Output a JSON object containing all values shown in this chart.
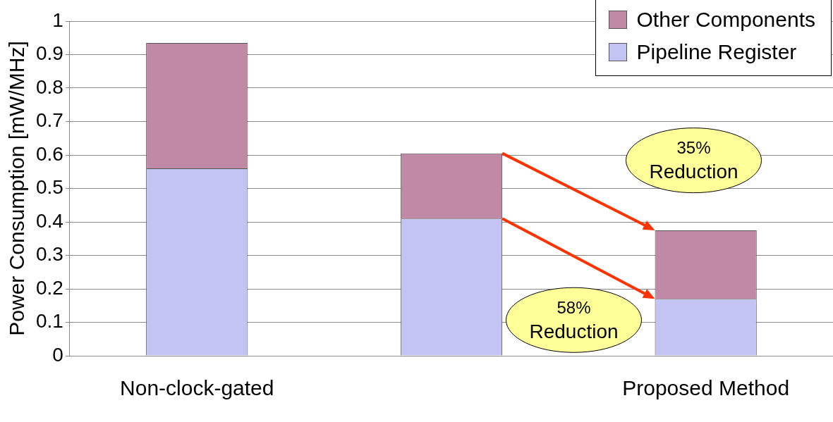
{
  "chart_data": {
    "type": "bar",
    "stacked": true,
    "ylabel": "Power Consumption [mW/MHz]",
    "categories": [
      "Non-clock-gated",
      null,
      "Proposed Method"
    ],
    "series": [
      {
        "name": "Pipeline Register",
        "color": "#c4c4f4",
        "values": [
          0.56,
          0.41,
          0.17
        ]
      },
      {
        "name": "Other Components",
        "color": "#c08aa6",
        "values": [
          0.375,
          0.195,
          0.205
        ]
      }
    ],
    "ylim": [
      0,
      1
    ],
    "yticks": [
      0,
      0.1,
      0.2,
      0.3,
      0.4,
      0.5,
      0.6,
      0.7,
      0.8,
      0.9,
      1
    ],
    "grid": "y",
    "legend": "top right",
    "annotations": [
      "35% Reduction",
      "58% Reduction"
    ]
  }
}
